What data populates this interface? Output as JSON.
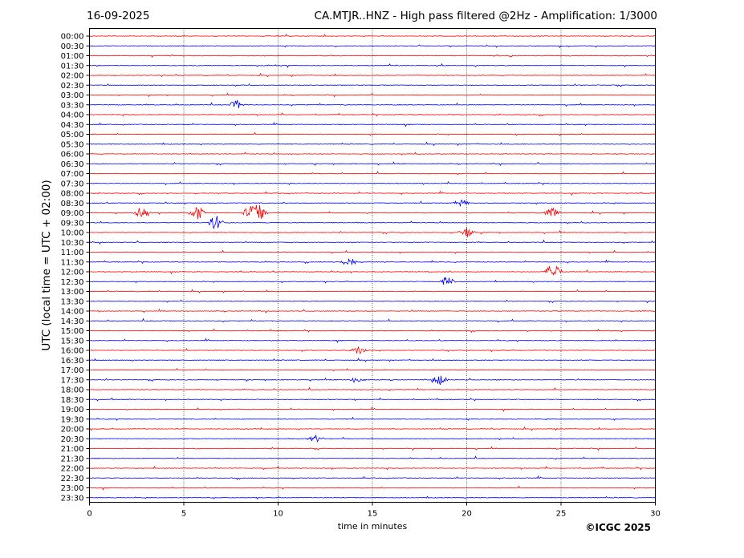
{
  "header": {
    "date": "16-09-2025",
    "title": "CA.MTJR..HNZ - High pass filtered @2Hz - Amplification: 1/3000"
  },
  "footer": {
    "copyright": "©ICGC 2025"
  },
  "chart_data": {
    "type": "line",
    "title": "CA.MTJR..HNZ - High pass filtered @2Hz - Amplification: 1/3000",
    "xlabel": "time in minutes",
    "ylabel": "UTC (local time = UTC + 02:00)",
    "xlim": [
      0,
      30
    ],
    "x_ticks": [
      0,
      5,
      10,
      15,
      20,
      25,
      30
    ],
    "grid_x": true,
    "trace_colors": [
      "#ff0000",
      "#0000ff"
    ],
    "rows": [
      "00:00",
      "00:30",
      "01:00",
      "01:30",
      "02:00",
      "02:30",
      "03:00",
      "03:30",
      "04:00",
      "04:30",
      "05:00",
      "05:30",
      "06:00",
      "06:30",
      "07:00",
      "07:30",
      "08:00",
      "08:30",
      "09:00",
      "09:30",
      "10:00",
      "10:30",
      "11:00",
      "11:30",
      "12:00",
      "12:30",
      "13:00",
      "13:30",
      "14:00",
      "14:30",
      "15:00",
      "15:30",
      "16:00",
      "16:30",
      "17:00",
      "17:30",
      "18:00",
      "18:30",
      "19:00",
      "19:30",
      "20:00",
      "20:30",
      "21:00",
      "21:30",
      "22:00",
      "22:30",
      "23:00",
      "23:30"
    ],
    "events": [
      {
        "row": "03:30",
        "minute": 7.8,
        "amplitude": 0.4
      },
      {
        "row": "08:30",
        "minute": 19.7,
        "amplitude": 0.3
      },
      {
        "row": "09:00",
        "minute": 2.8,
        "amplitude": 0.6
      },
      {
        "row": "09:00",
        "minute": 5.7,
        "amplitude": 0.7
      },
      {
        "row": "09:00",
        "minute": 8.5,
        "amplitude": 0.6
      },
      {
        "row": "09:00",
        "minute": 9.0,
        "amplitude": 0.8
      },
      {
        "row": "09:00",
        "minute": 24.5,
        "amplitude": 0.5
      },
      {
        "row": "09:30",
        "minute": 6.7,
        "amplitude": 0.7
      },
      {
        "row": "10:00",
        "minute": 20.0,
        "amplitude": 0.5
      },
      {
        "row": "11:30",
        "minute": 13.8,
        "amplitude": 0.5
      },
      {
        "row": "12:00",
        "minute": 24.6,
        "amplitude": 0.9
      },
      {
        "row": "12:30",
        "minute": 19.0,
        "amplitude": 0.5
      },
      {
        "row": "16:00",
        "minute": 14.3,
        "amplitude": 0.4
      },
      {
        "row": "17:30",
        "minute": 18.6,
        "amplitude": 0.5
      },
      {
        "row": "17:30",
        "minute": 14.2,
        "amplitude": 0.3
      },
      {
        "row": "20:30",
        "minute": 12.0,
        "amplitude": 0.3
      }
    ]
  }
}
